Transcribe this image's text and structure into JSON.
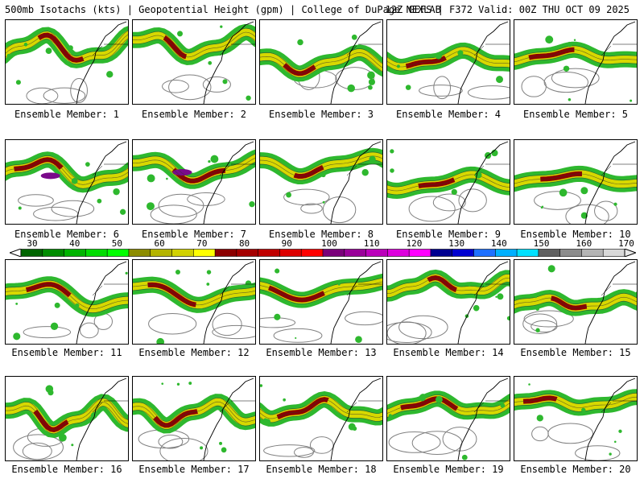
{
  "header": {
    "left_text": "500mb Isotachs (kts) | Geopotential Height (gpm) | College of DuPage NEXLAB",
    "right_text": "12Z GEFS | F372 Valid: 00Z THU OCT 09 2025"
  },
  "colorbar": {
    "labels": [
      "30",
      "40",
      "50",
      "60",
      "70",
      "80",
      "90",
      "100",
      "110",
      "120",
      "130",
      "140",
      "150",
      "160",
      "170"
    ],
    "colors": [
      "#006400",
      "#008c00",
      "#00b400",
      "#00dc00",
      "#00ff00",
      "#8c8c00",
      "#b4b400",
      "#d2d200",
      "#ffff00",
      "#8b0000",
      "#a50000",
      "#c00000",
      "#dd0000",
      "#ff0000",
      "#7a007a",
      "#990099",
      "#bb00bb",
      "#dd00dd",
      "#ff00ff",
      "#000090",
      "#0000d0",
      "#1e70ff",
      "#00b0ff",
      "#00e0ff",
      "#606060",
      "#8c8c8c",
      "#b4b4b4",
      "#d8d8d8"
    ]
  },
  "legend_colors": {
    "green": "#2eb82e",
    "yellow": "#d8d800",
    "darkred": "#8b0000",
    "purple": "#7a0a8a",
    "outline": "#808080"
  },
  "panels": [
    {
      "caption": "Ensemble Member: 1"
    },
    {
      "caption": "Ensemble Member: 2"
    },
    {
      "caption": "Ensemble Member: 3"
    },
    {
      "caption": "Ensemble Member: 4"
    },
    {
      "caption": "Ensemble Member: 5"
    },
    {
      "caption": "Ensemble Member: 6"
    },
    {
      "caption": "Ensemble Member: 7"
    },
    {
      "caption": "Ensemble Member: 8"
    },
    {
      "caption": "Ensemble Member: 9"
    },
    {
      "caption": "Ensemble Member: 10"
    },
    {
      "caption": "Ensemble Member: 11"
    },
    {
      "caption": "Ensemble Member: 12"
    },
    {
      "caption": "Ensemble Member: 13"
    },
    {
      "caption": "Ensemble Member: 14"
    },
    {
      "caption": "Ensemble Member: 15"
    },
    {
      "caption": "Ensemble Member: 16"
    },
    {
      "caption": "Ensemble Member: 17"
    },
    {
      "caption": "Ensemble Member: 18"
    },
    {
      "caption": "Ensemble Member: 19"
    },
    {
      "caption": "Ensemble Member: 20"
    }
  ]
}
